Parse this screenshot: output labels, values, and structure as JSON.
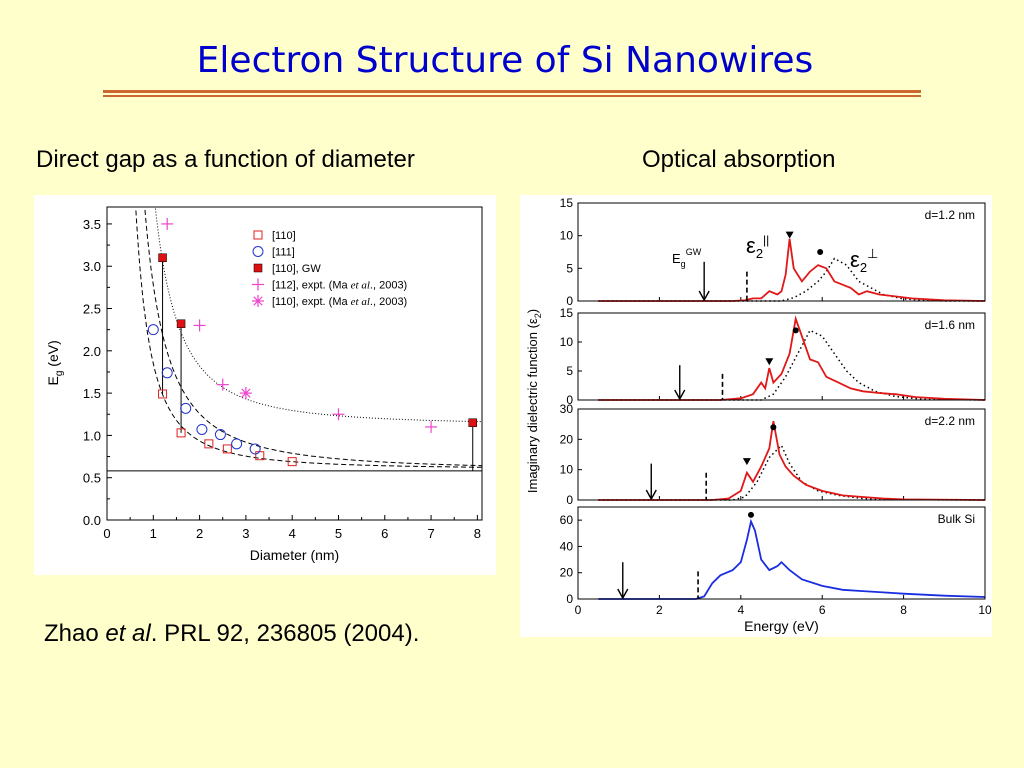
{
  "title": "Electron Structure of Si Nanowires",
  "left_heading": "Direct gap as a function of diameter",
  "right_heading": "Optical absorption",
  "citation": {
    "prefix": "Zhao ",
    "italic": "et al",
    "suffix": ". PRL 92, 236805 (2004)."
  },
  "chart_data": [
    {
      "type": "scatter",
      "xlabel": "Diameter (nm)",
      "ylabel": "E",
      "ylabel_sub": "g",
      "ylabel_unit": " (eV)",
      "xlim": [
        0,
        8.1
      ],
      "ylim": [
        0,
        3.7
      ],
      "xticks": [
        0,
        1,
        2,
        3,
        4,
        5,
        6,
        7,
        8
      ],
      "yticks": [
        "0.0",
        "0.5",
        "1.0",
        "1.5",
        "2.0",
        "2.5",
        "3.0",
        "3.5"
      ],
      "bulk_line": 0.58,
      "series": [
        {
          "name": "[110]",
          "marker": "open-square",
          "color": "#dd2222",
          "x": [
            1.2,
            1.6,
            2.2,
            2.6,
            3.3,
            4.0
          ],
          "y": [
            1.49,
            1.03,
            0.9,
            0.84,
            0.76,
            0.69
          ]
        },
        {
          "name": "[111]",
          "marker": "open-circle",
          "color": "#2233cc",
          "x": [
            1.0,
            1.3,
            1.7,
            2.05,
            2.45,
            2.8,
            3.2
          ],
          "y": [
            2.25,
            1.74,
            1.32,
            1.07,
            1.01,
            0.9,
            0.84
          ]
        },
        {
          "name": "[110], GW",
          "marker": "filled-square",
          "color": "#dd1111",
          "x": [
            1.2,
            1.6,
            7.9
          ],
          "y": [
            3.1,
            2.32,
            1.15
          ]
        },
        {
          "name": "[112], expt. (Ma et al., 2003)",
          "marker": "plus",
          "color": "#ee44cc",
          "x": [
            1.3,
            2.0,
            2.5,
            5.0,
            7.0
          ],
          "y": [
            3.5,
            2.3,
            1.6,
            1.25,
            1.1
          ]
        },
        {
          "name": "[110], expt. (Ma et al., 2003)",
          "marker": "asterisk",
          "color": "#ee44cc",
          "x": [
            3.0
          ],
          "y": [
            1.5
          ]
        }
      ],
      "legend": [
        {
          "pre": "[110]",
          "it": "",
          "post": ""
        },
        {
          "pre": "[111]",
          "it": "",
          "post": ""
        },
        {
          "pre": "[110], GW",
          "it": "",
          "post": ""
        },
        {
          "pre": "[112], expt. (Ma ",
          "it": "et al",
          "post": "., 2003)"
        },
        {
          "pre": "[110], expt. (Ma ",
          "it": "et al",
          "post": "., 2003)"
        }
      ],
      "legend_position": "top-right",
      "gw_links": [
        [
          1.2,
          1.49,
          3.1
        ],
        [
          1.6,
          1.03,
          2.32
        ],
        [
          7.9,
          0.58,
          1.15
        ]
      ]
    },
    {
      "type": "line",
      "xlabel": "Energy (eV)",
      "ylabel": "Imaginary dielectric function (ε",
      "ylabel_sub": "2",
      "ylabel_tail": ")",
      "xlim": [
        0,
        10
      ],
      "xticks": [
        0,
        2,
        4,
        6,
        8,
        10
      ],
      "eps_par": "ε",
      "eps_par_sub": "2",
      "eps_par_sup": "||",
      "eps_perp": "ε",
      "eps_perp_sub": "2",
      "eps_perp_sup": "⊥",
      "eg_label": "E",
      "eg_sub": "g",
      "eg_sup": "GW",
      "panels": [
        {
          "label": "d=1.2 nm",
          "ymax": 15,
          "yticks": [
            0,
            5,
            10,
            15
          ],
          "arrow": 3.1,
          "dash": 4.15,
          "triangle": [
            5.2,
            10
          ],
          "dot": [
            5.95,
            7.5
          ],
          "par": [
            [
              0.5,
              0
            ],
            [
              3.8,
              0
            ],
            [
              4.1,
              0.1
            ],
            [
              4.3,
              0.4
            ],
            [
              4.5,
              0.4
            ],
            [
              4.7,
              1.5
            ],
            [
              4.9,
              1.0
            ],
            [
              5.0,
              1.5
            ],
            [
              5.1,
              4
            ],
            [
              5.2,
              9.5
            ],
            [
              5.3,
              5
            ],
            [
              5.5,
              3
            ],
            [
              5.7,
              4.5
            ],
            [
              5.9,
              5.5
            ],
            [
              6.1,
              5
            ],
            [
              6.3,
              3
            ],
            [
              6.5,
              2.5
            ],
            [
              6.7,
              2
            ],
            [
              6.9,
              1
            ],
            [
              7.1,
              1.5
            ],
            [
              7.4,
              1
            ],
            [
              7.8,
              0.7
            ],
            [
              8.2,
              0.4
            ],
            [
              9.0,
              0.1
            ],
            [
              10,
              0
            ]
          ],
          "perp": [
            [
              0.5,
              0
            ],
            [
              5.0,
              0
            ],
            [
              5.3,
              0.5
            ],
            [
              5.6,
              1.5
            ],
            [
              5.9,
              3
            ],
            [
              6.1,
              4.5
            ],
            [
              6.3,
              6.5
            ],
            [
              6.6,
              5.5
            ],
            [
              6.9,
              3
            ],
            [
              7.2,
              2
            ],
            [
              7.5,
              1
            ],
            [
              8,
              0.3
            ],
            [
              9,
              0
            ],
            [
              10,
              0
            ]
          ]
        },
        {
          "label": "d=1.6 nm",
          "ymax": 15,
          "yticks": [
            0,
            5,
            10,
            15
          ],
          "arrow": 2.5,
          "dash": 3.55,
          "triangle": [
            4.7,
            6.5
          ],
          "dot": [
            5.35,
            12.0
          ],
          "par": [
            [
              0.5,
              0
            ],
            [
              3.5,
              0
            ],
            [
              4.0,
              0.3
            ],
            [
              4.3,
              1
            ],
            [
              4.5,
              3
            ],
            [
              4.6,
              2
            ],
            [
              4.7,
              5.5
            ],
            [
              4.8,
              3
            ],
            [
              5.0,
              4.5
            ],
            [
              5.2,
              8
            ],
            [
              5.35,
              14
            ],
            [
              5.5,
              11
            ],
            [
              5.7,
              7
            ],
            [
              5.9,
              6.5
            ],
            [
              6.1,
              4
            ],
            [
              6.4,
              3
            ],
            [
              6.7,
              2
            ],
            [
              7.0,
              1.5
            ],
            [
              7.4,
              1.2
            ],
            [
              7.8,
              1
            ],
            [
              8.3,
              0.5
            ],
            [
              9,
              0.2
            ],
            [
              10,
              0
            ]
          ],
          "perp": [
            [
              0.5,
              0
            ],
            [
              4.5,
              0
            ],
            [
              4.8,
              1
            ],
            [
              5.1,
              4
            ],
            [
              5.4,
              8
            ],
            [
              5.7,
              12
            ],
            [
              6.0,
              11
            ],
            [
              6.3,
              8
            ],
            [
              6.6,
              5
            ],
            [
              6.9,
              3
            ],
            [
              7.3,
              1.5
            ],
            [
              7.8,
              0.6
            ],
            [
              8.5,
              0.1
            ],
            [
              10,
              0
            ]
          ]
        },
        {
          "label": "d=2.2 nm",
          "ymax": 30,
          "yticks": [
            0,
            10,
            20,
            30
          ],
          "arrow": 1.8,
          "dash": 3.15,
          "triangle": [
            4.15,
            12.5
          ],
          "dot": [
            4.8,
            24.0
          ],
          "par": [
            [
              0.5,
              0
            ],
            [
              3.3,
              0
            ],
            [
              3.7,
              0.5
            ],
            [
              4.0,
              3
            ],
            [
              4.15,
              9
            ],
            [
              4.3,
              6
            ],
            [
              4.5,
              11
            ],
            [
              4.7,
              17
            ],
            [
              4.8,
              26
            ],
            [
              4.95,
              15
            ],
            [
              5.1,
              11
            ],
            [
              5.3,
              8
            ],
            [
              5.6,
              5
            ],
            [
              6.0,
              3
            ],
            [
              6.5,
              1.5
            ],
            [
              7.0,
              1
            ],
            [
              7.5,
              0.5
            ],
            [
              8,
              0.2
            ],
            [
              10,
              0
            ]
          ],
          "perp": [
            [
              0.5,
              0
            ],
            [
              3.8,
              0
            ],
            [
              4.1,
              1
            ],
            [
              4.4,
              6
            ],
            [
              4.7,
              14
            ],
            [
              5.0,
              18
            ],
            [
              5.2,
              12
            ],
            [
              5.5,
              6
            ],
            [
              5.9,
              3
            ],
            [
              6.4,
              1.5
            ],
            [
              7,
              0.5
            ],
            [
              8,
              0.1
            ],
            [
              10,
              0
            ]
          ]
        },
        {
          "label": "Bulk Si",
          "ymax": 70,
          "yticks": [
            0,
            20,
            40,
            60
          ],
          "arrow": 1.1,
          "dash": 2.95,
          "triangle": null,
          "dot": [
            4.25,
            64.0
          ],
          "par": [
            [
              0.5,
              0
            ],
            [
              2.9,
              0
            ],
            [
              3.1,
              2
            ],
            [
              3.3,
              12
            ],
            [
              3.5,
              18
            ],
            [
              3.8,
              22
            ],
            [
              4.0,
              28
            ],
            [
              4.15,
              45
            ],
            [
              4.25,
              59
            ],
            [
              4.35,
              52
            ],
            [
              4.5,
              30
            ],
            [
              4.7,
              22
            ],
            [
              4.9,
              25
            ],
            [
              5.0,
              28
            ],
            [
              5.2,
              22
            ],
            [
              5.5,
              15
            ],
            [
              6.0,
              10
            ],
            [
              6.5,
              7
            ],
            [
              7.0,
              6
            ],
            [
              7.5,
              5
            ],
            [
              8,
              4
            ],
            [
              9,
              2.5
            ],
            [
              10,
              1.5
            ]
          ],
          "perp": null
        }
      ]
    }
  ]
}
